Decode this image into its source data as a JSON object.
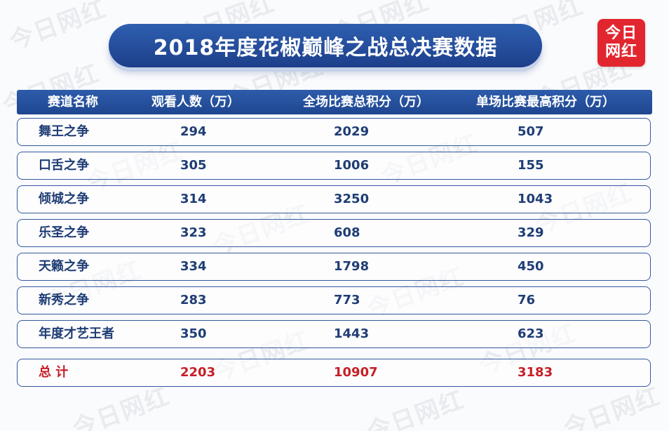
{
  "title": "2018年度花椒巅峰之战总决赛数据",
  "logo": {
    "line1": "今日",
    "line2": "网红",
    "color": "#e2262f"
  },
  "watermark_text": "今日网红",
  "colors": {
    "header_bg": "#1f4690",
    "text": "#1f3d75",
    "total_text": "#c51f27"
  },
  "table": {
    "headers": [
      "赛道名称",
      "观看人数（万）",
      "全场比赛总积分（万）",
      "单场比赛最高积分（万）"
    ],
    "rows": [
      {
        "name": "舞王之争",
        "viewers": "294",
        "total_score": "2029",
        "max_score": "507"
      },
      {
        "name": "口舌之争",
        "viewers": "305",
        "total_score": "1006",
        "max_score": "155"
      },
      {
        "name": "倾城之争",
        "viewers": "314",
        "total_score": "3250",
        "max_score": "1043"
      },
      {
        "name": "乐圣之争",
        "viewers": "323",
        "total_score": "608",
        "max_score": "329"
      },
      {
        "name": "天籁之争",
        "viewers": "334",
        "total_score": "1798",
        "max_score": "450"
      },
      {
        "name": "新秀之争",
        "viewers": "283",
        "total_score": "773",
        "max_score": "76"
      },
      {
        "name": "年度才艺王者",
        "viewers": "350",
        "total_score": "1443",
        "max_score": "623"
      }
    ],
    "total": {
      "name": "总 计",
      "viewers": "2203",
      "total_score": "10907",
      "max_score": "3183"
    }
  }
}
